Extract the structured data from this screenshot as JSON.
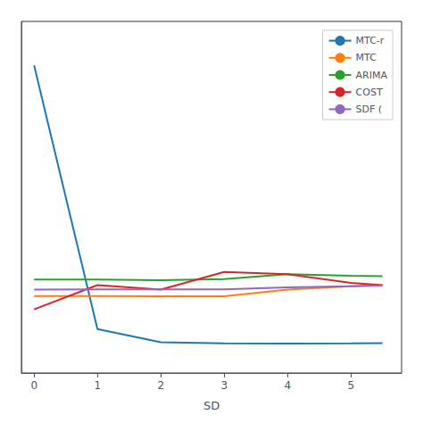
{
  "chart_data": {
    "type": "line",
    "xlabel": "SD",
    "x": [
      0,
      1,
      2,
      3,
      4,
      5,
      5.5
    ],
    "series": [
      {
        "name": "MTC-r",
        "color": "#1f77b4",
        "values": [
          2800,
          400,
          280,
          270,
          268,
          270,
          272
        ]
      },
      {
        "name": "MTC",
        "color": "#ff7f0e",
        "values": [
          700,
          700,
          698,
          698,
          760,
          790,
          800
        ]
      },
      {
        "name": "ARIMA",
        "color": "#2ca02c",
        "values": [
          850,
          850,
          845,
          855,
          900,
          885,
          882
        ]
      },
      {
        "name": "COST",
        "color": "#d62728",
        "values": [
          580,
          800,
          760,
          920,
          900,
          820,
          800
        ]
      },
      {
        "name": "SDF (",
        "color": "#9467bd",
        "values": [
          760,
          762,
          762,
          762,
          780,
          790,
          795
        ]
      }
    ],
    "xlim": [
      -0.2,
      5.8
    ],
    "ylim": [
      0,
      3200
    ],
    "xticks": [
      0,
      1,
      2,
      3,
      4,
      5
    ],
    "yticks": [],
    "grid": false,
    "legend": "upper right",
    "tick_labels": "x"
  }
}
